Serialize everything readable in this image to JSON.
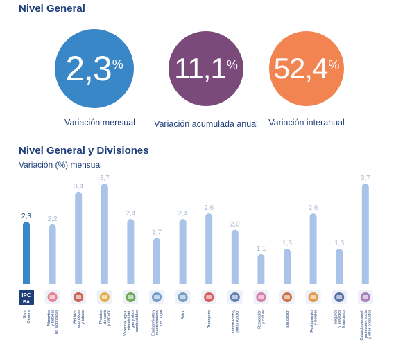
{
  "nivel_general": {
    "title": "Nivel General",
    "kpis": [
      {
        "value": "2,3",
        "unit": "%",
        "label": "Variación mensual",
        "color": "#3a87c8"
      },
      {
        "value": "11,1",
        "unit": "%",
        "label": "Variación acumulada anual",
        "color": "#7a4a7b"
      },
      {
        "value": "52,4",
        "unit": "%",
        "label": "Variación interanual",
        "color": "#f28452"
      }
    ]
  },
  "chart_section": {
    "title": "Nivel General y Divisiones",
    "subtitle": "Variación (%) mensual"
  },
  "chart_data": {
    "type": "bar",
    "title": "Nivel General y Divisiones",
    "ylabel": "Variación (%) mensual",
    "ylim": [
      0,
      3.7
    ],
    "categories": [
      [
        "Nivel",
        "General"
      ],
      [
        "Alimentos",
        "y bebidas",
        "no alcohólicas"
      ],
      [
        "Bebidas",
        "alcohólicas",
        "y tabaco"
      ],
      [
        "Prendas",
        "de vestir",
        "y calzado"
      ],
      [
        "Vivienda, agua,",
        "electricidad,",
        "gas y otros",
        "combustibles"
      ],
      [
        "Equipamiento y",
        "mantenimiento",
        "del hogar"
      ],
      [
        "Salud"
      ],
      [
        "Transporte"
      ],
      [
        "Información y",
        "comunicación"
      ],
      [
        "Recreación",
        "y cultura"
      ],
      [
        "Educación"
      ],
      [
        "Restaurantes",
        "y hoteles"
      ],
      [
        "Seguros",
        "y servicios",
        "financieros"
      ],
      [
        "Cuidado personal,",
        "protección social",
        "y otros productos"
      ]
    ],
    "values": [
      2.3,
      2.2,
      3.4,
      3.7,
      2.4,
      1.7,
      2.4,
      2.6,
      2.0,
      1.1,
      1.3,
      2.6,
      1.3,
      3.7
    ],
    "value_labels": [
      "2,3",
      "2,2",
      "3,4",
      "3,7",
      "2,4",
      "1,7",
      "2,4",
      "2,6",
      "2,0",
      "1,1",
      "1,3",
      "2,6",
      "1,3",
      "3,7"
    ],
    "icons": [
      "ipc-ba-logo-icon",
      "food-icon",
      "wine-bottle-icon",
      "clothing-icon",
      "house-icon",
      "washing-machine-icon",
      "doctor-icon",
      "car-icon",
      "computer-icon",
      "recreation-icon",
      "school-icon",
      "restaurant-icon",
      "bank-icon",
      "personal-care-icon"
    ],
    "colors": {
      "highlight": "#3a87c8",
      "bar": "#a9c4e8",
      "label": "#a9b9d4",
      "highlight_label": "#1f3f7a"
    }
  }
}
